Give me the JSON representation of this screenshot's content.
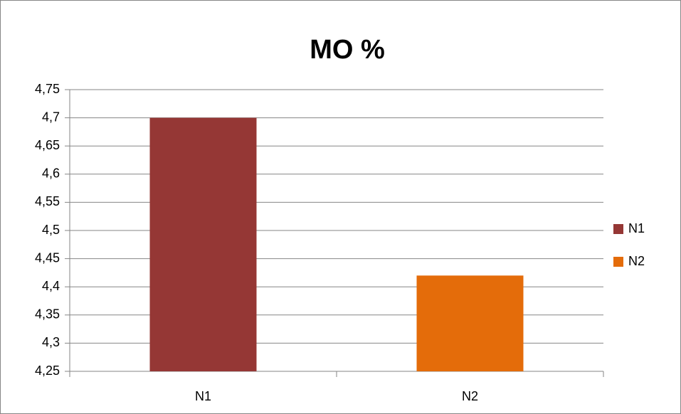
{
  "chart_data": {
    "type": "bar",
    "title": "MO %",
    "categories": [
      "N1",
      "N2"
    ],
    "series": [
      {
        "name": "N1",
        "color": "#953735",
        "values": [
          4.7,
          null
        ]
      },
      {
        "name": "N2",
        "color": "#e46c0a",
        "values": [
          null,
          4.42
        ]
      }
    ],
    "ylim": [
      4.25,
      4.75
    ],
    "yticks": [
      {
        "value": 4.25,
        "label": "4,25"
      },
      {
        "value": 4.3,
        "label": "4,3"
      },
      {
        "value": 4.35,
        "label": "4,35"
      },
      {
        "value": 4.4,
        "label": "4,4"
      },
      {
        "value": 4.45,
        "label": "4,45"
      },
      {
        "value": 4.5,
        "label": "4,5"
      },
      {
        "value": 4.55,
        "label": "4,55"
      },
      {
        "value": 4.6,
        "label": "4,6"
      },
      {
        "value": 4.65,
        "label": "4,65"
      },
      {
        "value": 4.7,
        "label": "4,7"
      },
      {
        "value": 4.75,
        "label": "4,75"
      }
    ],
    "grid": true,
    "legend": "right"
  }
}
